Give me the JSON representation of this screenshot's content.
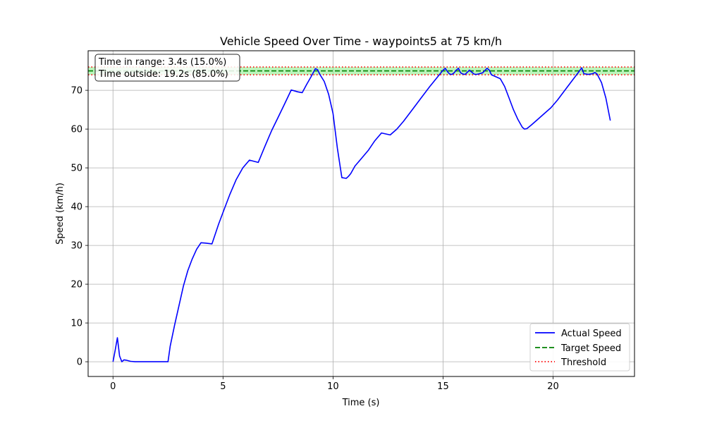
{
  "chart_data": {
    "type": "line",
    "title": "Vehicle Speed Over Time - waypoints5 at 75 km/h",
    "xlabel": "Time (s)",
    "ylabel": "Speed (km/h)",
    "xlim": [
      -1.13,
      23.7
    ],
    "ylim": [
      -3.8,
      80.2
    ],
    "xticks": [
      0,
      5,
      10,
      15,
      20
    ],
    "yticks": [
      0,
      10,
      20,
      30,
      40,
      50,
      60,
      70
    ],
    "grid": true,
    "legend_position": "lower-right",
    "target_speed": 75,
    "threshold_lower": 74,
    "threshold_upper": 76,
    "annotation": {
      "line1": "Time in range: 3.4s (15.0%)",
      "line2": "Time outside: 19.2s (85.0%)",
      "position": "top-left"
    },
    "series": [
      {
        "name": "Actual Speed",
        "color": "#0000ff",
        "style": "solid",
        "x": [
          0,
          0.1,
          0.2,
          0.3,
          0.4,
          0.5,
          0.6,
          0.8,
          1.0,
          1.5,
          2.0,
          2.5,
          2.6,
          2.8,
          3.0,
          3.2,
          3.4,
          3.6,
          3.8,
          4.0,
          4.2,
          4.5,
          4.8,
          5.0,
          5.3,
          5.6,
          5.9,
          6.2,
          6.6,
          6.9,
          7.2,
          7.5,
          7.8,
          8.1,
          8.4,
          8.6,
          8.8,
          9.0,
          9.2,
          9.3,
          9.4,
          9.6,
          9.8,
          10.0,
          10.2,
          10.4,
          10.6,
          10.7,
          10.8,
          11.0,
          11.3,
          11.6,
          11.9,
          12.2,
          12.6,
          12.9,
          13.2,
          13.6,
          14.0,
          14.4,
          14.8,
          15.0,
          15.1,
          15.2,
          15.3,
          15.4,
          15.5,
          15.6,
          15.7,
          15.8,
          15.9,
          16.0,
          16.2,
          16.4,
          16.5,
          16.6,
          16.8,
          17.0,
          17.1,
          17.2,
          17.4,
          17.6,
          17.8,
          18.0,
          18.2,
          18.4,
          18.6,
          18.7,
          18.8,
          19.0,
          19.3,
          19.6,
          19.9,
          20.2,
          20.6,
          21.0,
          21.2,
          21.3,
          21.4,
          21.6,
          21.8,
          21.9,
          22.0,
          22.2,
          22.4,
          22.6
        ],
        "values": [
          0,
          3,
          6.2,
          1.5,
          0,
          0.5,
          0.4,
          0.1,
          0,
          0,
          0,
          0,
          4,
          9.5,
          14.5,
          19.5,
          23.5,
          26.5,
          29,
          30.7,
          30.6,
          30.4,
          35.5,
          38.5,
          43,
          47,
          50,
          52,
          51.4,
          55.5,
          59.5,
          63,
          66.5,
          70.1,
          69.6,
          69.4,
          71.5,
          73.5,
          75.6,
          75.3,
          74.1,
          72.3,
          69,
          64,
          55,
          47.5,
          47.3,
          47.8,
          48.5,
          50.5,
          52.5,
          54.5,
          57,
          59,
          58.5,
          60,
          62,
          65,
          68,
          71,
          73.8,
          75.2,
          75.7,
          74.8,
          74.2,
          74.1,
          74.5,
          75.2,
          75.7,
          74.5,
          74.2,
          74.1,
          75.2,
          74.2,
          74.1,
          74.2,
          74.5,
          75.7,
          75.2,
          74,
          73.5,
          73,
          71,
          68,
          65,
          62.5,
          60.5,
          60,
          60.1,
          61,
          62.5,
          64,
          65.5,
          67.5,
          70.5,
          73.5,
          75,
          75.8,
          74.3,
          74.1,
          74.3,
          74.6,
          74.2,
          72,
          68,
          62.2
        ]
      },
      {
        "name": "Target Speed",
        "color": "#008000",
        "style": "dashed"
      },
      {
        "name": "Threshold",
        "color": "#ff0000",
        "style": "dotted"
      }
    ]
  }
}
